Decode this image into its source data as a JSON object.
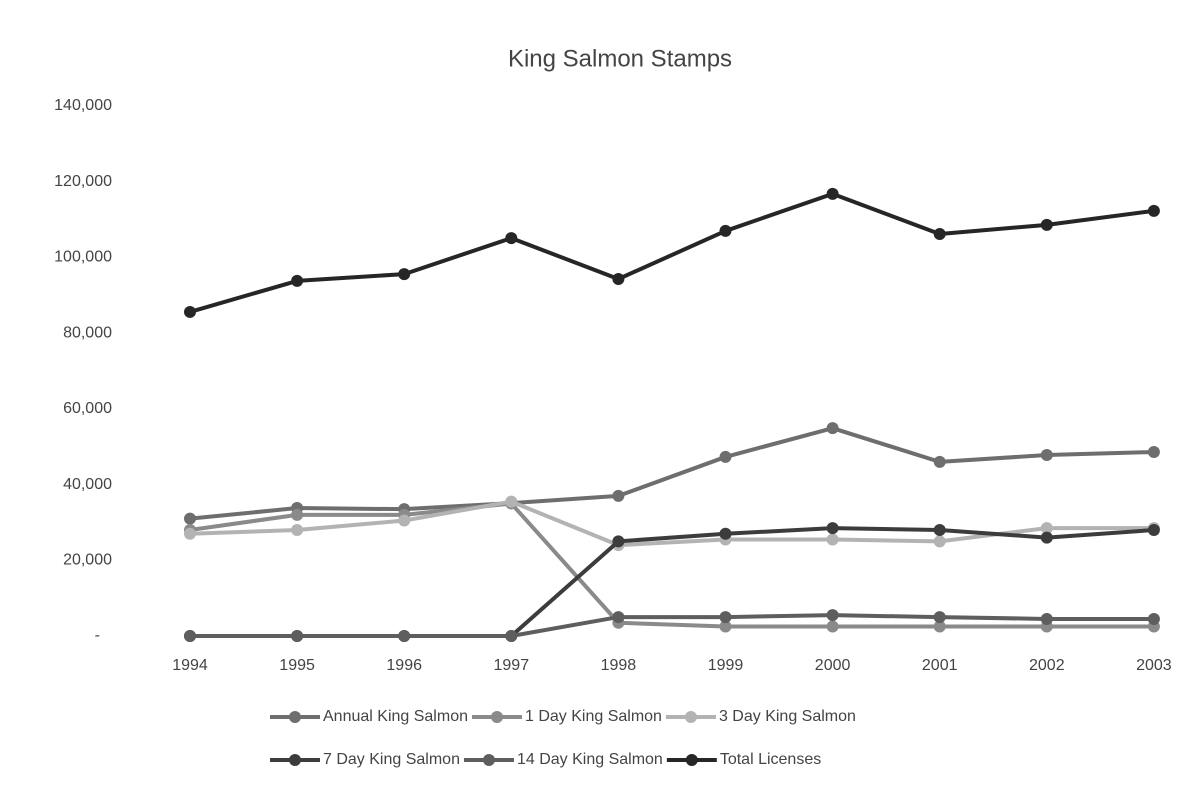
{
  "chart_data": {
    "type": "line",
    "title": "King Salmon Stamps",
    "categories": [
      "1994",
      "1995",
      "1996",
      "1997",
      "1998",
      "1999",
      "2000",
      "2001",
      "2002",
      "2003"
    ],
    "series": [
      {
        "name": "Annual King Salmon",
        "color": "#6e6e6e",
        "values": [
          31000,
          33800,
          33500,
          35100,
          37000,
          47300,
          54900,
          46000,
          47800,
          48600
        ]
      },
      {
        "name": "1 Day King Salmon",
        "color": "#8a8a8a",
        "values": [
          28000,
          32000,
          32000,
          35000,
          3500,
          2500,
          2500,
          2500,
          2500,
          2500
        ]
      },
      {
        "name": "3 Day King Salmon",
        "color": "#b3b3b3",
        "values": [
          27000,
          28000,
          30500,
          35500,
          24000,
          25500,
          25500,
          25000,
          28500,
          28500
        ]
      },
      {
        "name": "7 Day King Salmon",
        "color": "#3c3c3c",
        "values": [
          0,
          0,
          0,
          0,
          25000,
          27000,
          28500,
          28000,
          26000,
          28000
        ]
      },
      {
        "name": "14 Day King Salmon",
        "color": "#5e5e5e",
        "values": [
          0,
          0,
          0,
          0,
          5000,
          5000,
          5500,
          5000,
          4500,
          4500
        ]
      },
      {
        "name": "Total Licenses",
        "color": "#262626",
        "values": [
          85600,
          93800,
          95600,
          105100,
          94300,
          107000,
          116800,
          106200,
          108600,
          112300
        ]
      }
    ],
    "ylim": [
      0,
      140000
    ],
    "yticks": [
      {
        "value": 0,
        "label": "-"
      },
      {
        "value": 20000,
        "label": "20,000"
      },
      {
        "value": 40000,
        "label": "40,000"
      },
      {
        "value": 60000,
        "label": "60,000"
      },
      {
        "value": 80000,
        "label": "80,000"
      },
      {
        "value": 100000,
        "label": "100,000"
      },
      {
        "value": 120000,
        "label": "120,000"
      },
      {
        "value": 140000,
        "label": "140,000"
      }
    ],
    "grid": false
  }
}
